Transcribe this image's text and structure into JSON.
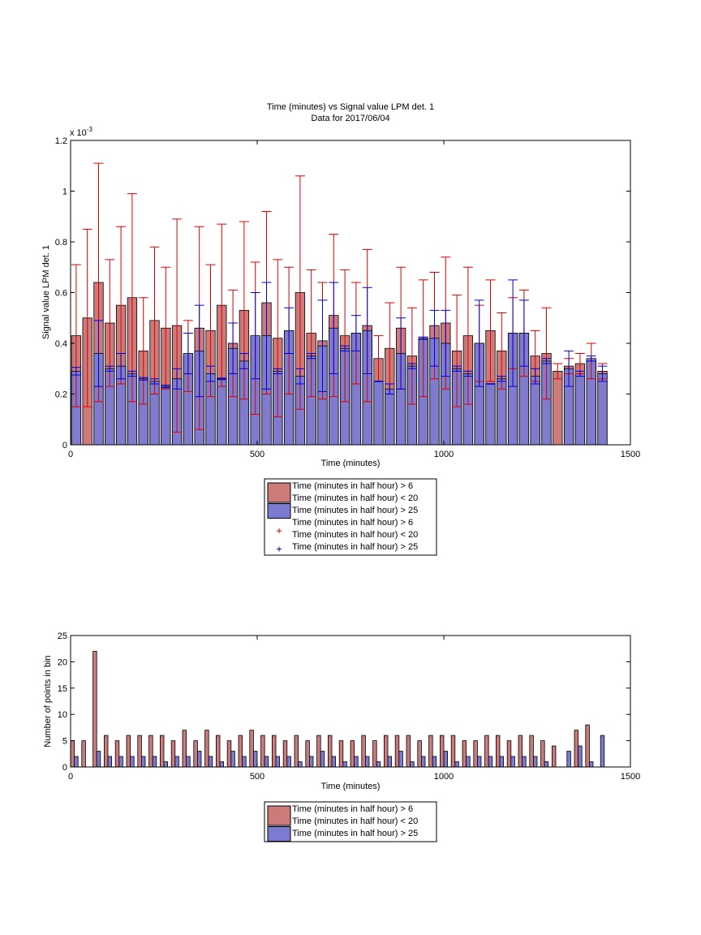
{
  "colors": {
    "red_fill": "#cc7a7a",
    "blue_fill": "#7b7bd1",
    "red_err": "#dd0000",
    "blue_err": "#0000dd"
  },
  "chart_data": [
    {
      "type": "bar",
      "title": "Time (minutes) vs Signal value LPM det. 1",
      "subtitle": "Data for 2017/06/04",
      "xlabel": "Time (minutes)",
      "ylabel": "Signal value LPM det. 1",
      "exponent_label": "x 10",
      "exponent_power": "-3",
      "xlim": [
        0,
        1500
      ],
      "ylim": [
        0,
        1.2
      ],
      "y_scale_factor": 0.001,
      "xticks": [
        "0",
        "500",
        "1000",
        "1500"
      ],
      "yticks": [
        "0",
        "0.2",
        "0.4",
        "0.6",
        "0.8",
        "1",
        "1.2"
      ],
      "grid": false,
      "legend_position": "bottom",
      "legend": [
        "Time (minutes in half hour) > 6",
        "Time (minutes in half hour) < 20",
        "Time (minutes in half hour) > 25",
        "Time (minutes in half hour) > 6",
        "Time (minutes in half hour) < 20",
        "Time (minutes in half hour) > 25"
      ],
      "series": [
        {
          "x": [
            15,
            45,
            75,
            105,
            135,
            165,
            195,
            225,
            255,
            285,
            315,
            345,
            375,
            405,
            435,
            465,
            495,
            525,
            555,
            585,
            615,
            645,
            675,
            705,
            735,
            765,
            795,
            825,
            855,
            885,
            915,
            945,
            975,
            1005,
            1035,
            1065,
            1095,
            1125,
            1155,
            1185,
            1215,
            1245,
            1275,
            1305,
            1335,
            1365,
            1395,
            1425
          ],
          "values": [
            0.43,
            0.5,
            0.64,
            0.48,
            0.55,
            0.58,
            0.37,
            0.49,
            0.46,
            0.47,
            0.35,
            0.46,
            0.45,
            0.55,
            0.4,
            0.53,
            0.42,
            0.56,
            0.42,
            0.45,
            0.6,
            0.44,
            0.41,
            0.51,
            0.43,
            0.44,
            0.47,
            0.34,
            0.38,
            0.46,
            0.35,
            0.42,
            0.47,
            0.48,
            0.37,
            0.43,
            0.4,
            0.45,
            0.37,
            0.44,
            0.44,
            0.35,
            0.36,
            0.29,
            0.31,
            0.32,
            0.33,
            0.29
          ],
          "err": [
            0.28,
            0.35,
            0.47,
            0.25,
            0.31,
            0.41,
            0.21,
            0.29,
            0.24,
            0.42,
            0.14,
            0.4,
            0.26,
            0.32,
            0.21,
            0.35,
            0.3,
            0.36,
            0.31,
            0.25,
            0.46,
            0.25,
            0.23,
            0.32,
            0.26,
            0.2,
            0.3,
            0.09,
            0.18,
            0.24,
            0.19,
            0.23,
            0.21,
            0.26,
            0.22,
            0.27,
            0.15,
            0.2,
            0.15,
            0.14,
            0.17,
            0.1,
            0.18,
            0.03,
            0.03,
            0.04,
            0.07,
            0.03
          ]
        },
        {
          "x": [
            15,
            75,
            105,
            135,
            165,
            195,
            225,
            255,
            285,
            315,
            345,
            375,
            405,
            435,
            465,
            495,
            525,
            555,
            585,
            615,
            645,
            675,
            705,
            735,
            765,
            795,
            825,
            855,
            885,
            915,
            945,
            975,
            1005,
            1035,
            1065,
            1095,
            1125,
            1155,
            1185,
            1215,
            1245,
            1275,
            1335,
            1365,
            1395,
            1425
          ],
          "values": [
            0.29,
            0.36,
            0.3,
            0.31,
            0.28,
            0.26,
            0.25,
            0.23,
            0.26,
            0.36,
            0.37,
            0.28,
            0.26,
            0.38,
            0.33,
            0.43,
            0.43,
            0.29,
            0.45,
            0.27,
            0.35,
            0.39,
            0.46,
            0.38,
            0.44,
            0.45,
            0.25,
            0.22,
            0.36,
            0.31,
            0.42,
            0.42,
            0.4,
            0.3,
            0.28,
            0.4,
            0.24,
            0.26,
            0.44,
            0.44,
            0.27,
            0.33,
            0.3,
            0.28,
            0.34,
            0.28
          ],
          "err": [
            0.015,
            0.13,
            0.01,
            0.05,
            0.01,
            0.005,
            0.01,
            0.005,
            0.04,
            0.08,
            0.18,
            0.03,
            0.003,
            0.1,
            0.03,
            0.17,
            0.21,
            0.01,
            0.09,
            0.03,
            0.01,
            0.18,
            0.18,
            0.01,
            0.07,
            0.17,
            0.001,
            0.02,
            0.14,
            0.01,
            0.005,
            0.11,
            0.13,
            0.01,
            0.01,
            0.17,
            0.001,
            0.01,
            0.21,
            0.13,
            0.03,
            0.01,
            0.07,
            0.01,
            0.01,
            0.03
          ]
        }
      ]
    },
    {
      "type": "bar",
      "xlabel": "Time (minutes)",
      "ylabel": "Number of points in bin",
      "xlim": [
        0,
        1500
      ],
      "ylim": [
        0,
        25
      ],
      "xticks": [
        "0",
        "500",
        "1000",
        "1500"
      ],
      "yticks": [
        "0",
        "5",
        "10",
        "15",
        "20",
        "25"
      ],
      "grid": false,
      "legend_position": "bottom",
      "legend": [
        "Time (minutes in half hour) > 6",
        "Time (minutes in half hour) < 20",
        "Time (minutes in half hour) > 25"
      ],
      "series": [
        {
          "x": [
            5,
            35,
            65,
            95,
            125,
            155,
            185,
            215,
            245,
            275,
            305,
            335,
            365,
            395,
            425,
            455,
            485,
            515,
            545,
            575,
            605,
            635,
            665,
            695,
            725,
            755,
            785,
            815,
            845,
            875,
            905,
            935,
            965,
            995,
            1025,
            1055,
            1085,
            1115,
            1145,
            1175,
            1205,
            1235,
            1265,
            1295,
            1355,
            1385
          ],
          "values": [
            5,
            5,
            22,
            6,
            5,
            6,
            6,
            6,
            6,
            5,
            7,
            5,
            7,
            6,
            5,
            6,
            7,
            6,
            6,
            5,
            6,
            5,
            6,
            6,
            5,
            5,
            6,
            5,
            6,
            6,
            6,
            5,
            6,
            6,
            6,
            5,
            5,
            6,
            6,
            5,
            6,
            6,
            5,
            4,
            7,
            8
          ]
        },
        {
          "x": [
            15,
            75,
            105,
            135,
            165,
            195,
            225,
            255,
            285,
            315,
            345,
            375,
            405,
            435,
            465,
            495,
            525,
            555,
            585,
            615,
            645,
            675,
            705,
            735,
            765,
            795,
            825,
            855,
            885,
            915,
            945,
            975,
            1005,
            1035,
            1065,
            1095,
            1125,
            1155,
            1185,
            1215,
            1245,
            1275,
            1335,
            1365,
            1395,
            1425
          ],
          "values": [
            2,
            3,
            2,
            2,
            2,
            2,
            2,
            1,
            2,
            2,
            3,
            2,
            1,
            3,
            2,
            3,
            2,
            2,
            2,
            1,
            2,
            3,
            2,
            1,
            2,
            2,
            1,
            2,
            3,
            1,
            2,
            2,
            3,
            1,
            2,
            2,
            2,
            2,
            2,
            2,
            2,
            1,
            3,
            4,
            1,
            6
          ]
        }
      ]
    }
  ]
}
